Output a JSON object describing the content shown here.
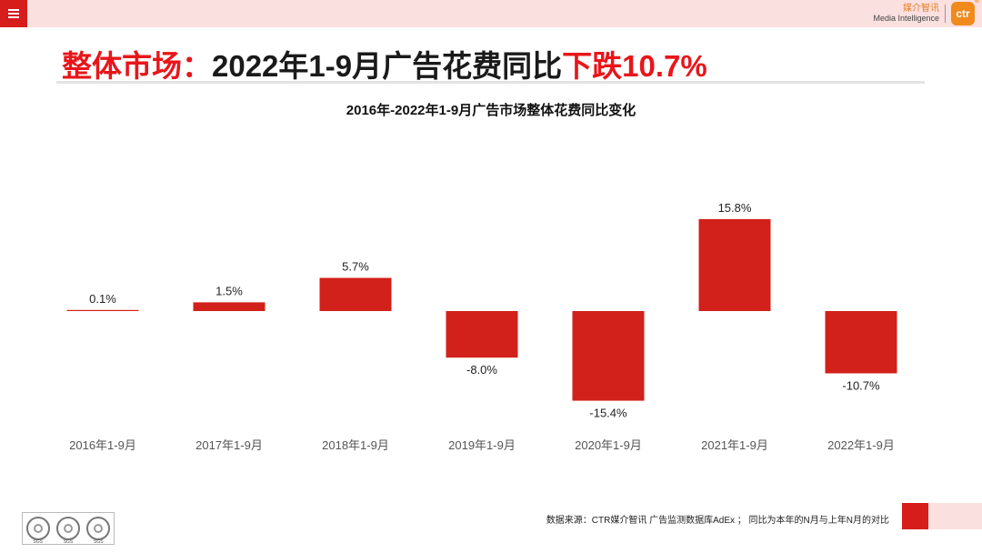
{
  "header": {
    "brand_cn": "媒介智讯",
    "brand_en": "Media Intelligence",
    "brand_logo": "ctr",
    "menu_icon": "hamburger-icon"
  },
  "slide": {
    "title_prefix": "整体市场：",
    "title_main": "2022年1-9月广告花费同比",
    "title_highlight": "下跌10.7%"
  },
  "chart_data": {
    "type": "bar",
    "title": "2016年-2022年1-9月广告市场整体花费同比变化",
    "categories": [
      "2016年1-9月",
      "2017年1-9月",
      "2018年1-9月",
      "2019年1-9月",
      "2020年1-9月",
      "2021年1-9月",
      "2022年1-9月"
    ],
    "values": [
      0.1,
      1.5,
      5.7,
      -8.0,
      -15.4,
      15.8,
      -10.7
    ],
    "value_labels": [
      "0.1%",
      "1.5%",
      "5.7%",
      "-8.0%",
      "-15.4%",
      "15.8%",
      "-10.7%"
    ],
    "unit": "%",
    "bar_color": "#d2201a",
    "grid": false,
    "legend": "none"
  },
  "footer": {
    "source": "数据来源：CTR媒介智讯 广告监测数据库AdEx ； 同比为本年的N月与上年N月的对比",
    "seal_label": "SGS",
    "accent_color": "#d71c1c"
  }
}
